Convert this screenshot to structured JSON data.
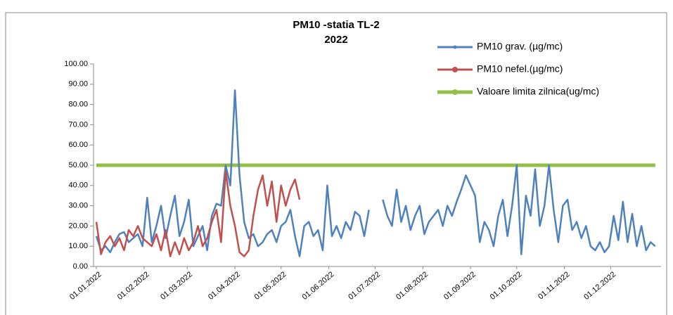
{
  "chart_data": {
    "type": "line",
    "title": "PM10 -statia TL-2",
    "subtitle": "2022",
    "x": [
      1,
      4,
      7,
      10,
      13,
      16,
      19,
      22,
      25,
      28,
      31,
      34,
      37,
      40,
      43,
      46,
      49,
      52,
      55,
      58,
      61,
      64,
      67,
      70,
      73,
      76,
      79,
      82,
      85,
      88,
      91,
      94,
      97,
      100,
      103,
      106,
      109,
      112,
      115,
      118,
      121,
      124,
      127,
      130,
      133,
      136,
      139,
      142,
      145,
      148,
      151,
      154,
      157,
      160,
      163,
      166,
      169,
      172,
      175,
      178,
      181,
      184,
      187,
      190,
      193,
      196,
      199,
      202,
      205,
      208,
      211,
      214,
      217,
      220,
      223,
      226,
      229,
      232,
      235,
      238,
      241,
      244,
      247,
      250,
      253,
      256,
      259,
      262,
      265,
      268,
      271,
      274,
      277,
      280,
      283,
      286,
      289,
      292,
      295,
      298,
      301,
      304,
      307,
      310,
      313,
      316,
      319,
      322,
      325,
      328,
      331,
      334,
      337,
      340,
      343,
      346,
      349,
      352,
      355,
      358,
      361,
      364
    ],
    "series": [
      {
        "name": "PM10 grav. (µg/mc)",
        "color": "#4f81bd",
        "values": [
          15,
          8,
          10,
          7,
          12,
          16,
          17,
          12,
          14,
          16,
          10,
          34,
          12,
          20,
          30,
          14,
          25,
          35,
          15,
          22,
          33,
          10,
          15,
          20,
          8,
          25,
          31,
          30,
          50,
          40,
          87,
          45,
          22,
          14,
          16,
          10,
          12,
          16,
          18,
          12,
          20,
          22,
          28,
          15,
          5,
          20,
          22,
          15,
          18,
          8,
          40,
          15,
          20,
          14,
          22,
          18,
          27,
          25,
          15,
          28,
          null,
          null,
          33,
          25,
          20,
          38,
          22,
          30,
          18,
          25,
          30,
          16,
          22,
          25,
          28,
          20,
          30,
          25,
          32,
          38,
          45,
          40,
          35,
          12,
          22,
          18,
          10,
          25,
          33,
          15,
          30,
          50,
          6,
          35,
          25,
          48,
          20,
          30,
          50,
          28,
          12,
          30,
          33,
          18,
          22,
          14,
          20,
          10,
          8,
          12,
          7,
          10,
          25,
          13,
          32,
          12,
          26,
          10,
          20,
          8,
          12,
          10
        ]
      },
      {
        "name": "PM10 nefel.(µg/mc)",
        "color": "#c0504d",
        "values": [
          22,
          6,
          12,
          15,
          10,
          14,
          8,
          18,
          15,
          20,
          14,
          12,
          10,
          16,
          8,
          18,
          5,
          12,
          6,
          14,
          8,
          12,
          20,
          10,
          14,
          22,
          28,
          12,
          47,
          30,
          20,
          7,
          5,
          8,
          25,
          38,
          45,
          30,
          42,
          22,
          40,
          30,
          38,
          43,
          33,
          null,
          null,
          null,
          null,
          null,
          null,
          null,
          null,
          null,
          null,
          null,
          null,
          null,
          null,
          null,
          null,
          null,
          null,
          null,
          null,
          null,
          null,
          null,
          null,
          null,
          null,
          null,
          null,
          null,
          null,
          null,
          null,
          null,
          null,
          null,
          null,
          null,
          null,
          null,
          null,
          null,
          null,
          null,
          null,
          null,
          null,
          null,
          null,
          null,
          null,
          null,
          null,
          null,
          null,
          null,
          null,
          null,
          null,
          null,
          null,
          null,
          null,
          null,
          null,
          null,
          null,
          null,
          null,
          null,
          null,
          null,
          null,
          null,
          null,
          null,
          null,
          null
        ]
      },
      {
        "name": "Valoare limita zilnica(ug/mc)",
        "color": "#92c047",
        "values": [
          50,
          50,
          50,
          50,
          50,
          50,
          50,
          50,
          50,
          50,
          50,
          50,
          50,
          50,
          50,
          50,
          50,
          50,
          50,
          50,
          50,
          50,
          50,
          50,
          50,
          50,
          50,
          50,
          50,
          50,
          50,
          50,
          50,
          50,
          50,
          50,
          50,
          50,
          50,
          50,
          50,
          50,
          50,
          50,
          50,
          50,
          50,
          50,
          50,
          50,
          50,
          50,
          50,
          50,
          50,
          50,
          50,
          50,
          50,
          50,
          50,
          50,
          50,
          50,
          50,
          50,
          50,
          50,
          50,
          50,
          50,
          50,
          50,
          50,
          50,
          50,
          50,
          50,
          50,
          50,
          50,
          50,
          50,
          50,
          50,
          50,
          50,
          50,
          50,
          50,
          50,
          50,
          50,
          50,
          50,
          50,
          50,
          50,
          50,
          50,
          50,
          50,
          50,
          50,
          50,
          50,
          50,
          50,
          50,
          50,
          50,
          50,
          50,
          50,
          50,
          50,
          50,
          50,
          50,
          50,
          50,
          50
        ]
      }
    ],
    "xlim": [
      1,
      365
    ],
    "xticks": [
      {
        "value": 1,
        "label": "01.01.2022"
      },
      {
        "value": 32,
        "label": "01.02.2022"
      },
      {
        "value": 60,
        "label": "01.03.2022"
      },
      {
        "value": 91,
        "label": "01.04.2022"
      },
      {
        "value": 121,
        "label": "01.05.2022"
      },
      {
        "value": 152,
        "label": "01.06.2022"
      },
      {
        "value": 182,
        "label": "01.07.2022"
      },
      {
        "value": 213,
        "label": "01.08.2022"
      },
      {
        "value": 244,
        "label": "01.09.2022"
      },
      {
        "value": 274,
        "label": "01.10.2022"
      },
      {
        "value": 305,
        "label": "01.11.2022"
      },
      {
        "value": 335,
        "label": "01.12.2022"
      }
    ],
    "ylim": [
      0,
      100
    ],
    "yticks": [
      {
        "value": 0,
        "label": "0.00"
      },
      {
        "value": 10,
        "label": "10.00"
      },
      {
        "value": 20,
        "label": "20.00"
      },
      {
        "value": 30,
        "label": "30.00"
      },
      {
        "value": 40,
        "label": "40.00"
      },
      {
        "value": 50,
        "label": "50.00"
      },
      {
        "value": 60,
        "label": "60.00"
      },
      {
        "value": 70,
        "label": "70.00"
      },
      {
        "value": 80,
        "label": "80.00"
      },
      {
        "value": 90,
        "label": "90.00"
      },
      {
        "value": 100,
        "label": "100.00"
      }
    ],
    "grid": false,
    "legend": "top-right"
  }
}
